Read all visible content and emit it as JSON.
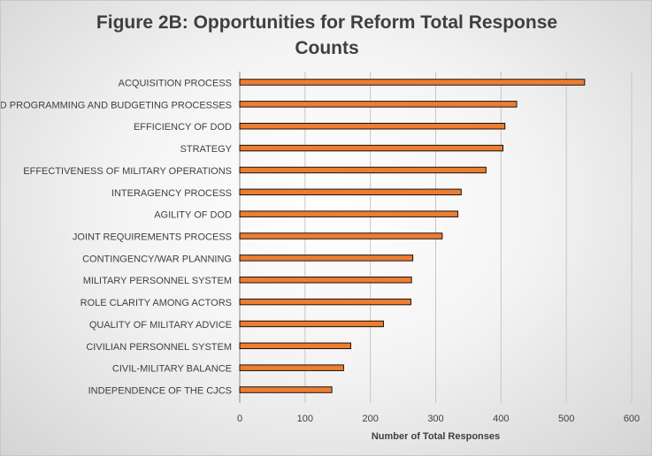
{
  "chart_data": {
    "type": "bar",
    "orientation": "horizontal",
    "title_lines": [
      "Figure 2B: Opportunities for Reform Total Response",
      "Counts"
    ],
    "xlabel": "Number of Total Responses",
    "ylabel": "",
    "xlim": [
      0,
      600
    ],
    "x_ticks": [
      0,
      100,
      200,
      300,
      400,
      500,
      600
    ],
    "grid": "vertical",
    "legend": "none",
    "bar_color": "#ed7d31",
    "categories": [
      "ACQUISITION PROCESS",
      "DOD PROGRAMMING AND BUDGETING PROCESSES",
      "EFFICIENCY OF DOD",
      "STRATEGY",
      "EFFECTIVENESS OF MILITARY OPERATIONS",
      "INTERAGENCY PROCESS",
      "AGILITY OF DOD",
      "JOINT REQUIREMENTS PROCESS",
      "CONTINGENCY/WAR PLANNING",
      "MILITARY PERSONNEL SYSTEM",
      "ROLE CLARITY AMONG ACTORS",
      "QUALITY OF MILITARY ADVICE",
      "CIVILIAN PERSONNEL SYSTEM",
      "CIVIL-MILITARY BALANCE",
      "INDEPENDENCE OF THE CJCS"
    ],
    "values": [
      528,
      424,
      406,
      403,
      377,
      339,
      334,
      310,
      265,
      263,
      262,
      220,
      170,
      159,
      141
    ]
  }
}
